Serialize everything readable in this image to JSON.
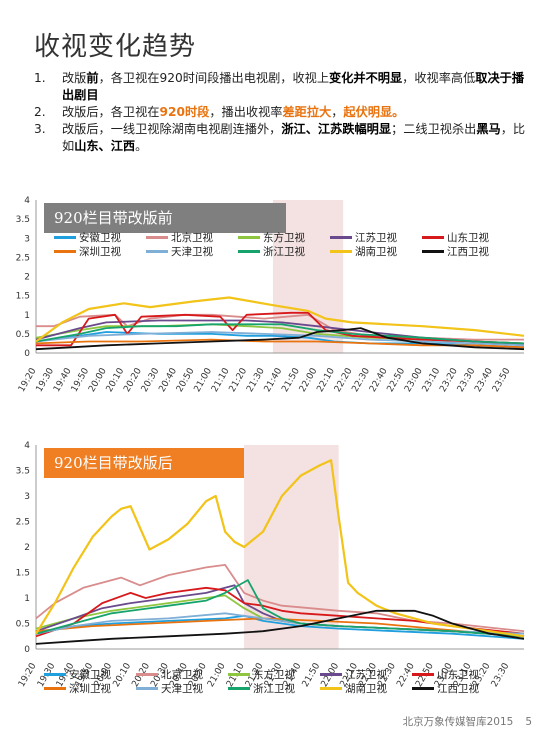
{
  "page": {
    "title": "收视变化趋势",
    "bullets": [
      {
        "num": "1.",
        "parts": [
          {
            "t": "改版"
          },
          {
            "t": "前",
            "s": "b"
          },
          {
            "t": "，各卫视在920时间段播出电视剧，收视上"
          },
          {
            "t": "变化并不明显",
            "s": "b"
          },
          {
            "t": "，收视率高低"
          },
          {
            "t": "取决于播出剧目",
            "s": "b"
          }
        ]
      },
      {
        "num": "2.",
        "parts": [
          {
            "t": "改版后，各卫视在"
          },
          {
            "t": "920时段",
            "s": "o"
          },
          {
            "t": "，播出收视率"
          },
          {
            "t": "差距拉大",
            "s": "o"
          },
          {
            "t": "，"
          },
          {
            "t": "起伏明显。",
            "s": "o"
          }
        ]
      },
      {
        "num": "3.",
        "parts": [
          {
            "t": "改版后，一线卫视除湖南电视剧连播外，"
          },
          {
            "t": "浙江、江苏跌幅明显",
            "s": "b"
          },
          {
            "t": "；二线卫视杀出"
          },
          {
            "t": "黑马",
            "s": "b"
          },
          {
            "t": "，比如"
          },
          {
            "t": "山东、江西",
            "s": "b"
          },
          {
            "t": "。"
          }
        ]
      }
    ],
    "footer": {
      "source": "北京万象传媒智库2015",
      "page_number": "5"
    }
  },
  "chart_data": [
    {
      "type": "line",
      "title": "920栏目带改版前",
      "title_bg": "#7f7f7f",
      "ylim": [
        0,
        4
      ],
      "yticks": [
        "0",
        "0.5",
        "1",
        "1.5",
        "2",
        "2.5",
        "3",
        "3.5",
        "4"
      ],
      "xlim": [
        "19:20",
        "23:58"
      ],
      "xticks": [
        "19:20",
        "19:30",
        "19:40",
        "19:50",
        "20:00",
        "20:10",
        "20:20",
        "20:30",
        "20:40",
        "20:50",
        "21:00",
        "21:10",
        "21:20",
        "21:30",
        "21:40",
        "21:50",
        "22:00",
        "22:10",
        "22:20",
        "22:30",
        "22:40",
        "22:50",
        "23:00",
        "23:10",
        "23:20",
        "23:30",
        "23:40",
        "23:50"
      ],
      "highlight": [
        "21:35",
        "22:15"
      ],
      "grid": false,
      "legend_position": "top",
      "series": [
        {
          "name": "安徽卫视",
          "color": "#1f9fde",
          "x": [
            "19:20",
            "19:45",
            "20:00",
            "20:30",
            "21:00",
            "21:20",
            "21:35",
            "21:55",
            "22:10",
            "22:30",
            "23:00",
            "23:30",
            "23:58"
          ],
          "values": [
            0.3,
            0.45,
            0.55,
            0.5,
            0.5,
            0.45,
            0.45,
            0.4,
            0.3,
            0.25,
            0.25,
            0.2,
            0.15
          ]
        },
        {
          "name": "北京卫视",
          "color": "#d98c8c",
          "x": [
            "19:20",
            "19:30",
            "19:45",
            "20:05",
            "20:12",
            "20:25",
            "20:45",
            "21:00",
            "21:15",
            "21:30",
            "21:55",
            "22:10",
            "22:30",
            "23:00",
            "23:30",
            "23:58"
          ],
          "values": [
            0.7,
            0.7,
            0.95,
            1.0,
            0.7,
            0.9,
            1.0,
            1.0,
            0.95,
            0.9,
            1.0,
            0.6,
            0.45,
            0.4,
            0.35,
            0.35
          ]
        },
        {
          "name": "东方卫视",
          "color": "#8ec63f",
          "x": [
            "19:20",
            "19:45",
            "20:00",
            "20:30",
            "21:00",
            "21:20",
            "21:40",
            "22:00",
            "22:30",
            "23:00",
            "23:30",
            "23:58"
          ],
          "values": [
            0.4,
            0.6,
            0.7,
            0.7,
            0.75,
            0.7,
            0.65,
            0.5,
            0.4,
            0.35,
            0.3,
            0.25
          ]
        },
        {
          "name": "江苏卫视",
          "color": "#6a4a8c",
          "x": [
            "19:20",
            "19:45",
            "20:00",
            "20:30",
            "21:00",
            "21:20",
            "21:40",
            "22:00",
            "22:20",
            "22:40",
            "23:00",
            "23:30",
            "23:58"
          ],
          "values": [
            0.35,
            0.65,
            0.8,
            0.85,
            0.85,
            0.85,
            0.8,
            0.7,
            0.6,
            0.5,
            0.4,
            0.3,
            0.2
          ]
        },
        {
          "name": "山东卫视",
          "color": "#d7191c",
          "x": [
            "19:20",
            "19:40",
            "19:50",
            "20:05",
            "20:12",
            "20:20",
            "20:45",
            "21:05",
            "21:12",
            "21:20",
            "21:45",
            "21:55",
            "22:05",
            "22:20",
            "22:40",
            "23:00",
            "23:30",
            "23:58"
          ],
          "values": [
            0.2,
            0.2,
            0.9,
            1.0,
            0.5,
            0.95,
            1.0,
            0.95,
            0.6,
            1.0,
            1.05,
            1.05,
            0.6,
            0.45,
            0.4,
            0.35,
            0.3,
            0.25
          ]
        },
        {
          "name": "深圳卫视",
          "color": "#e8730f",
          "x": [
            "19:20",
            "19:50",
            "20:20",
            "21:00",
            "21:30",
            "22:00",
            "22:30",
            "23:00",
            "23:30",
            "23:58"
          ],
          "values": [
            0.25,
            0.3,
            0.3,
            0.35,
            0.3,
            0.3,
            0.25,
            0.2,
            0.2,
            0.15
          ]
        },
        {
          "name": "天津卫视",
          "color": "#7faed6",
          "x": [
            "19:20",
            "19:50",
            "20:20",
            "21:00",
            "21:30",
            "22:00",
            "22:30",
            "23:00",
            "23:30",
            "23:58"
          ],
          "values": [
            0.3,
            0.45,
            0.5,
            0.55,
            0.5,
            0.45,
            0.35,
            0.3,
            0.25,
            0.2
          ]
        },
        {
          "name": "浙江卫视",
          "color": "#16a36c",
          "x": [
            "19:20",
            "19:45",
            "20:00",
            "20:20",
            "20:40",
            "21:00",
            "21:20",
            "21:40",
            "22:00",
            "22:20",
            "22:40",
            "23:00",
            "23:30",
            "23:58"
          ],
          "values": [
            0.3,
            0.5,
            0.65,
            0.7,
            0.7,
            0.75,
            0.75,
            0.75,
            0.6,
            0.5,
            0.45,
            0.4,
            0.3,
            0.25
          ]
        },
        {
          "name": "湖南卫视",
          "color": "#f2c318",
          "x": [
            "19:20",
            "19:35",
            "19:50",
            "20:10",
            "20:25",
            "20:50",
            "21:10",
            "21:35",
            "21:55",
            "22:05",
            "22:20",
            "22:40",
            "23:00",
            "23:30",
            "23:58"
          ],
          "values": [
            0.3,
            0.8,
            1.15,
            1.3,
            1.2,
            1.35,
            1.45,
            1.25,
            1.1,
            0.9,
            0.8,
            0.75,
            0.7,
            0.6,
            0.45
          ]
        },
        {
          "name": "江西卫视",
          "color": "#111111",
          "x": [
            "19:20",
            "19:40",
            "20:00",
            "20:30",
            "21:00",
            "21:30",
            "21:50",
            "22:00",
            "22:15",
            "22:25",
            "22:40",
            "23:00",
            "23:30",
            "23:58"
          ],
          "values": [
            0.1,
            0.15,
            0.2,
            0.25,
            0.3,
            0.35,
            0.4,
            0.55,
            0.6,
            0.65,
            0.4,
            0.25,
            0.15,
            0.1
          ]
        }
      ]
    },
    {
      "type": "line",
      "title": "920栏目带改版后",
      "title_bg": "#f07e22",
      "ylim": [
        0,
        4
      ],
      "yticks": [
        "0",
        "0.5",
        "1",
        "1.5",
        "2",
        "2.5",
        "3",
        "3.5",
        "4"
      ],
      "xlim": [
        "19:20",
        "23:38"
      ],
      "xticks": [
        "19:20",
        "19:30",
        "19:40",
        "19:50",
        "20:00",
        "20:10",
        "20:20",
        "20:30",
        "20:40",
        "20:50",
        "21:00",
        "21:10",
        "21:20",
        "21:30",
        "21:40",
        "21:50",
        "22:00",
        "22:10",
        "22:20",
        "22:30",
        "22:40",
        "22:50",
        "23:00",
        "23:10",
        "23:20",
        "23:30"
      ],
      "highlight": [
        "21:10",
        "22:00"
      ],
      "grid": false,
      "legend_position": "bottom",
      "series": [
        {
          "name": "安徽卫视",
          "color": "#1f9fde",
          "x": [
            "19:20",
            "19:40",
            "20:00",
            "20:30",
            "21:00",
            "21:10",
            "21:20",
            "21:40",
            "22:00",
            "22:30",
            "23:00",
            "23:38"
          ],
          "values": [
            0.3,
            0.45,
            0.5,
            0.55,
            0.6,
            0.65,
            0.55,
            0.45,
            0.4,
            0.35,
            0.3,
            0.2
          ]
        },
        {
          "name": "北京卫视",
          "color": "#d98c8c",
          "x": [
            "19:20",
            "19:30",
            "19:45",
            "20:05",
            "20:15",
            "20:30",
            "20:50",
            "21:00",
            "21:10",
            "21:20",
            "21:30",
            "21:45",
            "22:00",
            "22:20",
            "22:40",
            "23:00",
            "23:38"
          ],
          "values": [
            0.6,
            0.9,
            1.2,
            1.4,
            1.25,
            1.45,
            1.6,
            1.65,
            1.1,
            0.95,
            0.85,
            0.8,
            0.75,
            0.7,
            0.55,
            0.5,
            0.35
          ]
        },
        {
          "name": "东方卫视",
          "color": "#8ec63f",
          "x": [
            "19:20",
            "19:40",
            "20:00",
            "20:30",
            "20:50",
            "21:00",
            "21:10",
            "21:20",
            "21:40",
            "22:00",
            "22:30",
            "23:00",
            "23:38"
          ],
          "values": [
            0.4,
            0.6,
            0.75,
            0.9,
            1.0,
            1.05,
            0.8,
            0.6,
            0.5,
            0.45,
            0.4,
            0.35,
            0.25
          ]
        },
        {
          "name": "江苏卫视",
          "color": "#6a4a8c",
          "x": [
            "19:20",
            "19:40",
            "19:55",
            "20:10",
            "20:30",
            "20:50",
            "21:00",
            "21:05",
            "21:10",
            "21:20",
            "21:30",
            "21:40",
            "22:00",
            "22:30",
            "23:00",
            "23:38"
          ],
          "values": [
            0.35,
            0.6,
            0.8,
            0.9,
            1.0,
            1.1,
            1.2,
            1.25,
            0.9,
            0.7,
            0.55,
            0.5,
            0.45,
            0.4,
            0.35,
            0.25
          ]
        },
        {
          "name": "山东卫视",
          "color": "#d7191c",
          "x": [
            "19:20",
            "19:40",
            "19:55",
            "20:10",
            "20:18",
            "20:30",
            "20:50",
            "21:00",
            "21:10",
            "21:20",
            "21:30",
            "21:40",
            "22:00",
            "22:20",
            "22:40",
            "23:00",
            "23:38"
          ],
          "values": [
            0.25,
            0.5,
            0.9,
            1.1,
            1.0,
            1.1,
            1.2,
            1.15,
            0.9,
            0.85,
            0.75,
            0.7,
            0.65,
            0.6,
            0.55,
            0.45,
            0.3
          ]
        },
        {
          "name": "深圳卫视",
          "color": "#e8730f",
          "x": [
            "19:20",
            "19:50",
            "20:20",
            "20:50",
            "21:20",
            "21:50",
            "22:20",
            "22:50",
            "23:20",
            "23:38"
          ],
          "values": [
            0.35,
            0.45,
            0.5,
            0.55,
            0.6,
            0.55,
            0.5,
            0.4,
            0.3,
            0.25
          ]
        },
        {
          "name": "天津卫视",
          "color": "#7faed6",
          "x": [
            "19:20",
            "19:40",
            "20:00",
            "20:30",
            "21:00",
            "21:20",
            "21:40",
            "22:00",
            "22:30",
            "23:00",
            "23:38"
          ],
          "values": [
            0.3,
            0.45,
            0.55,
            0.6,
            0.7,
            0.6,
            0.5,
            0.45,
            0.4,
            0.35,
            0.3
          ]
        },
        {
          "name": "浙江卫视",
          "color": "#16a36c",
          "x": [
            "19:20",
            "19:40",
            "20:00",
            "20:30",
            "20:50",
            "21:00",
            "21:12",
            "21:20",
            "21:30",
            "21:40",
            "22:00",
            "22:30",
            "23:00",
            "23:38"
          ],
          "values": [
            0.3,
            0.5,
            0.7,
            0.85,
            0.95,
            1.1,
            1.35,
            0.8,
            0.6,
            0.5,
            0.45,
            0.4,
            0.35,
            0.25
          ]
        },
        {
          "name": "湖南卫视",
          "color": "#f2c318",
          "x": [
            "19:20",
            "19:30",
            "19:40",
            "19:50",
            "20:00",
            "20:05",
            "20:10",
            "20:20",
            "20:30",
            "20:40",
            "20:50",
            "20:55",
            "21:00",
            "21:05",
            "21:10",
            "21:20",
            "21:30",
            "21:40",
            "21:50",
            "21:56",
            "22:00",
            "22:05",
            "22:10",
            "22:20",
            "22:30",
            "22:40",
            "22:50",
            "23:00",
            "23:10",
            "23:20",
            "23:38"
          ],
          "values": [
            0.3,
            0.9,
            1.6,
            2.2,
            2.6,
            2.75,
            2.8,
            1.95,
            2.15,
            2.45,
            2.9,
            3.0,
            2.3,
            2.1,
            2.0,
            2.3,
            3.0,
            3.4,
            3.6,
            3.7,
            2.6,
            1.3,
            1.1,
            0.85,
            0.7,
            0.6,
            0.5,
            0.45,
            0.4,
            0.35,
            0.25
          ]
        },
        {
          "name": "江西卫视",
          "color": "#111111",
          "x": [
            "19:20",
            "19:40",
            "20:00",
            "20:30",
            "21:00",
            "21:20",
            "21:40",
            "22:00",
            "22:20",
            "22:40",
            "22:50",
            "23:00",
            "23:20",
            "23:38"
          ],
          "values": [
            0.1,
            0.15,
            0.2,
            0.25,
            0.3,
            0.35,
            0.45,
            0.6,
            0.75,
            0.75,
            0.65,
            0.5,
            0.3,
            0.2
          ]
        }
      ]
    }
  ]
}
